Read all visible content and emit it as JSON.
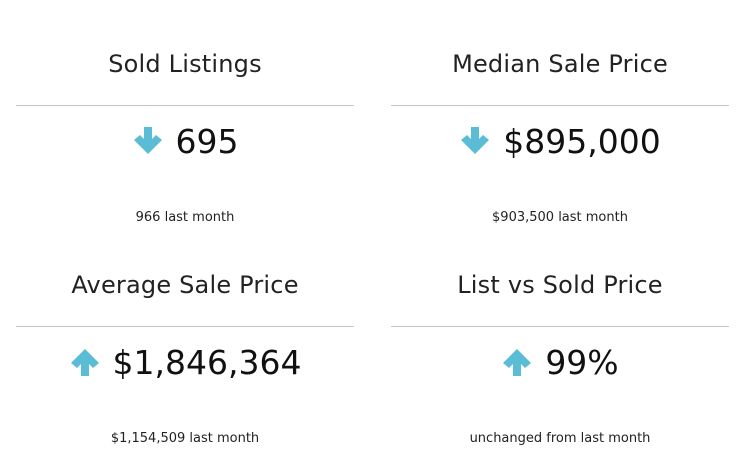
{
  "colors": {
    "accent": "#5bbdd5",
    "divider": "#c4c4c4",
    "text": "#1a1a1a"
  },
  "stats": [
    {
      "title": "Sold Listings",
      "direction": "down",
      "icon": "arrow-down-icon",
      "value": "695",
      "comparison": "966 last month"
    },
    {
      "title": "Median Sale Price",
      "direction": "down",
      "icon": "arrow-down-icon",
      "value": "$895,000",
      "comparison": "$903,500 last month"
    },
    {
      "title": "Average Sale Price",
      "direction": "up",
      "icon": "arrow-up-icon",
      "value": "$1,846,364",
      "comparison": "$1,154,509 last month"
    },
    {
      "title": "List vs Sold Price",
      "direction": "up",
      "icon": "arrow-up-icon",
      "value": "99%",
      "comparison": "unchanged from last month"
    }
  ]
}
